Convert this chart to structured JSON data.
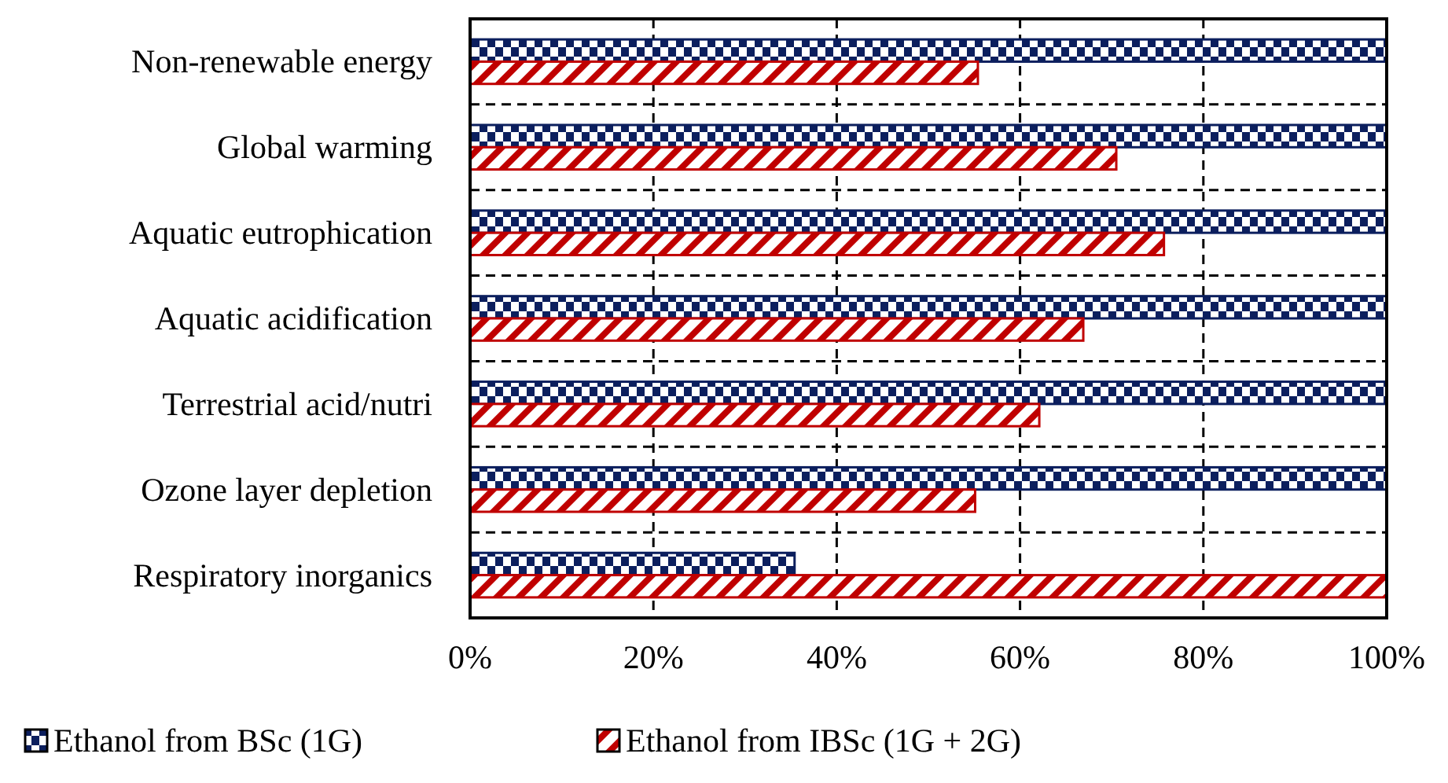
{
  "chart_data": {
    "type": "bar",
    "orientation": "horizontal",
    "categories": [
      "Non-renewable energy",
      "Global warming",
      "Aquatic eutrophication",
      "Aquatic acidification",
      "Terrestrial acid/nutri",
      "Ozone layer depletion",
      "Respiratory inorganics"
    ],
    "series": [
      {
        "name": "Ethanol from BSc (1G)",
        "color": "#0c1f5e",
        "values": [
          100,
          100,
          100,
          100,
          100,
          100,
          35.4
        ]
      },
      {
        "name": "Ethanol from IBSc (1G + 2G)",
        "color": "#c00000",
        "values": [
          55.4,
          70.5,
          75.7,
          66.9,
          62.1,
          55.1,
          100
        ]
      }
    ],
    "xlim": [
      0,
      100
    ],
    "xticks": [
      {
        "value": 0,
        "label": "0%"
      },
      {
        "value": 20,
        "label": "20%"
      },
      {
        "value": 40,
        "label": "40%"
      },
      {
        "value": 60,
        "label": "60%"
      },
      {
        "value": 80,
        "label": "80%"
      },
      {
        "value": 100,
        "label": "100%"
      }
    ],
    "grid": true,
    "legend": "bottom"
  }
}
